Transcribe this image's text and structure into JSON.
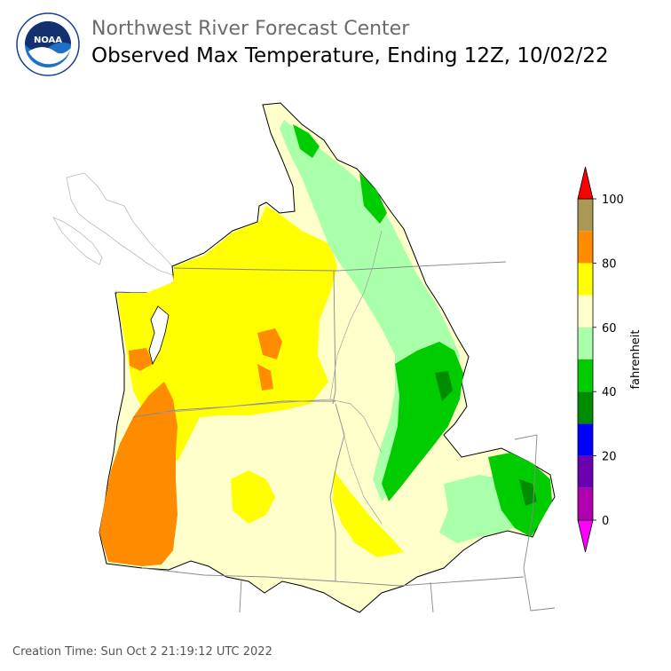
{
  "header": {
    "agency": "Northwest River Forecast Center",
    "title": "Observed Max Temperature, Ending 12Z, 10/02/22",
    "logo_text": "NOAA"
  },
  "footer": {
    "creation_time": "Creation Time: Sun Oct 2 21:19:12 UTC 2022"
  },
  "legend": {
    "unit": "fahrenheit",
    "ticks": [
      "0",
      "20",
      "40",
      "60",
      "80",
      "100"
    ],
    "bins": [
      {
        "range": "< 0",
        "color": "#ff00ff"
      },
      {
        "range": "0-10",
        "color": "#b000b0"
      },
      {
        "range": "10-20",
        "color": "#6a00b0"
      },
      {
        "range": "20-30",
        "color": "#0000ff"
      },
      {
        "range": "30-40",
        "color": "#008c00"
      },
      {
        "range": "40-50",
        "color": "#00cc00"
      },
      {
        "range": "50-60",
        "color": "#aaffaa"
      },
      {
        "range": "60-70",
        "color": "#ffffcc"
      },
      {
        "range": "70-80",
        "color": "#ffff00"
      },
      {
        "range": "80-90",
        "color": "#ff8c00"
      },
      {
        "range": "90-100",
        "color": "#aa9955"
      },
      {
        "range": "> 100",
        "color": "#ff0000"
      }
    ]
  }
}
